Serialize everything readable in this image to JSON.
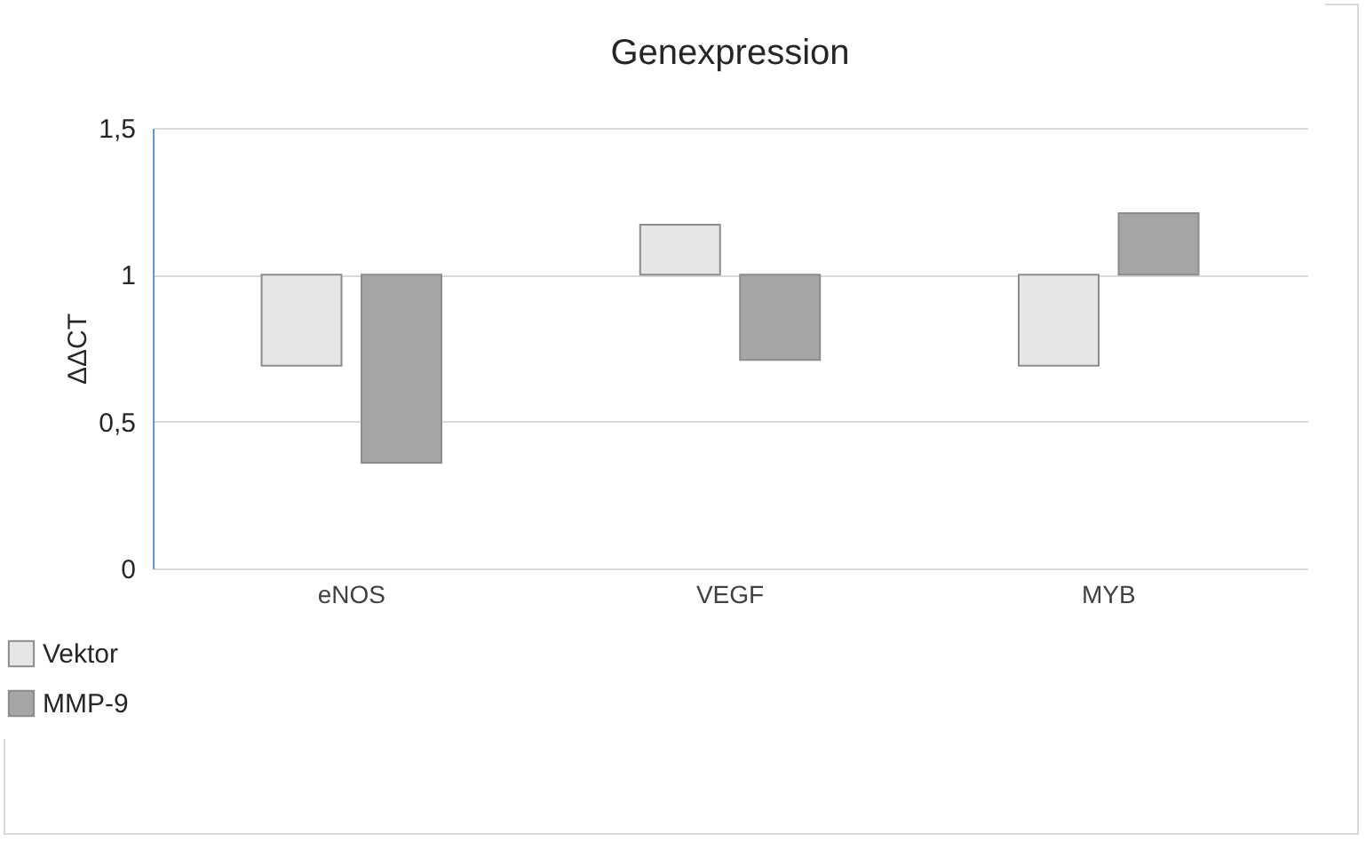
{
  "chart_data": {
    "type": "bar",
    "title": "Genexpression",
    "ylabel": "ΔΔCT",
    "categories": [
      "eNOS",
      "VEGF",
      "MYB"
    ],
    "series": [
      {
        "name": "Vektor",
        "color": "#e6e6e6",
        "base": [
          1,
          1,
          1
        ],
        "values": [
          -0.31,
          0.17,
          -0.31
        ]
      },
      {
        "name": "MMP-9",
        "color": "#a5a5a5",
        "base": [
          1,
          1,
          1
        ],
        "values": [
          -0.64,
          -0.29,
          0.21
        ]
      }
    ],
    "ylim": [
      0,
      1.5
    ],
    "yticks": [
      0,
      {
        "value": 0.5,
        "label": "0,5"
      },
      1,
      {
        "value": 1.5,
        "label": "1,5"
      }
    ],
    "grid": "y",
    "legend": "bottom left"
  }
}
